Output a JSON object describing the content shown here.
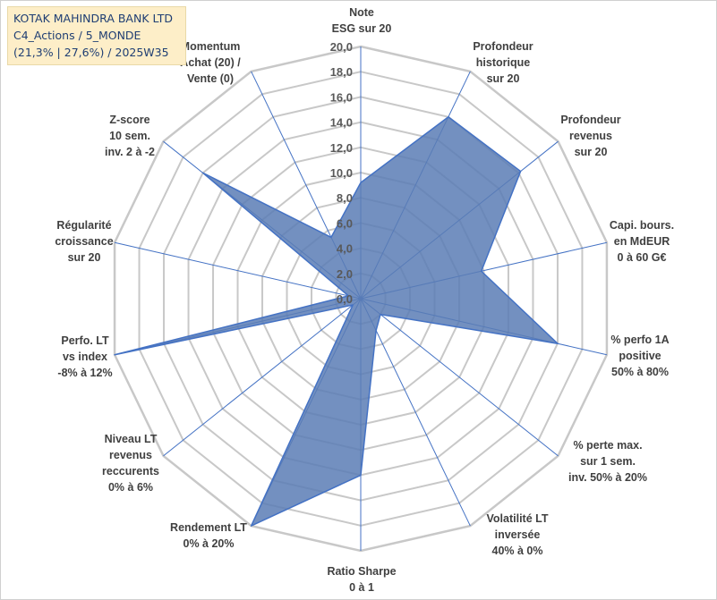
{
  "header": {
    "line1": "KOTAK MAHINDRA BANK LTD",
    "line2": "C4_Actions / 5_MONDE",
    "line3": "(21,3% | 27,6%) / 2025W35"
  },
  "chart_data": {
    "type": "radar",
    "title": "",
    "rmin": 0,
    "rmax": 20,
    "tick_step": 2,
    "tick_labels": [
      "0,0",
      "2,0",
      "4,0",
      "6,0",
      "8,0",
      "10,0",
      "12,0",
      "14,0",
      "16,0",
      "18,0",
      "20,0"
    ],
    "categories": [
      [
        "Note",
        "ESG sur 20"
      ],
      [
        "Profondeur",
        "historique",
        "sur 20"
      ],
      [
        "Profondeur",
        "revenus",
        "sur 20"
      ],
      [
        "Capi. bours.",
        "en MdEUR",
        "0 à 60 G€"
      ],
      [
        "% perfo 1A",
        "positive",
        "50% à 80%"
      ],
      [
        "% perte max.",
        "sur 1 sem.",
        "inv. 50% à 20%"
      ],
      [
        "Volatilité LT",
        "inversée",
        "40% à 0%"
      ],
      [
        "Ratio Sharpe",
        "0 à 1"
      ],
      [
        "Rendement LT",
        "0% à 20%"
      ],
      [
        "Niveau LT",
        "revenus",
        "reccurents",
        "0% à 6%"
      ],
      [
        "Perfo. LT",
        "vs index",
        "-8% à 12%"
      ],
      [
        "Régularité",
        "croissance",
        "sur 20"
      ],
      [
        "Z-score",
        "10 sem.",
        "inv. 2 à -2"
      ],
      [
        "Momentum",
        "Achat (20) /",
        "Vente (0)"
      ]
    ],
    "values": [
      9.2,
      16.0,
      16.2,
      9.8,
      16.0,
      2.0,
      2.8,
      14.0,
      20.0,
      0.8,
      20.0,
      1.0,
      16.0,
      5.4
    ],
    "colors": {
      "fill": "#5b7db5",
      "line": "#4472c4",
      "grid": "#c8c8c8",
      "axis": "#4472c4"
    }
  }
}
